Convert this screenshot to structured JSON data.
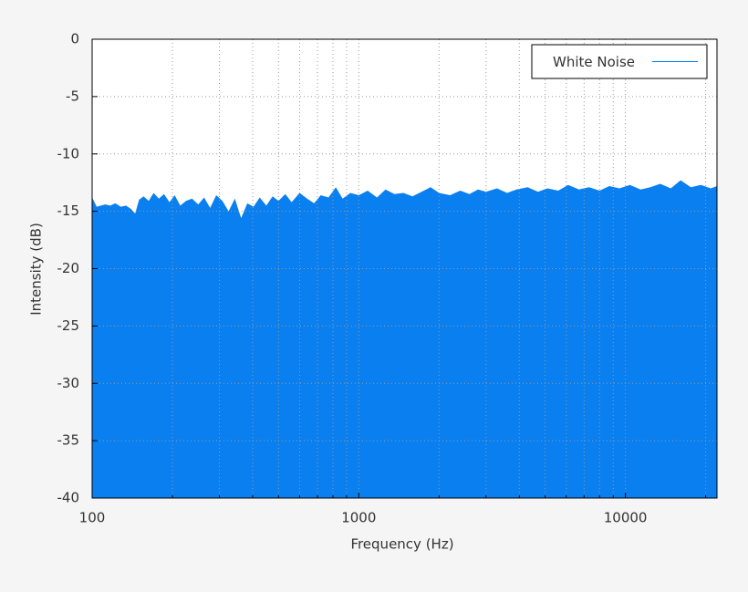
{
  "chart_data": {
    "type": "area",
    "xlabel": "Frequency (Hz)",
    "ylabel": "Intensity (dB)",
    "log_x": true,
    "grid": true,
    "legend": "upper right",
    "xlim": [
      100,
      22050
    ],
    "xticks": [
      100,
      1000,
      10000
    ],
    "x_minor_ticks": [
      200,
      300,
      400,
      500,
      600,
      700,
      800,
      900,
      2000,
      3000,
      4000,
      5000,
      6000,
      7000,
      8000,
      9000,
      20000
    ],
    "ylim": [
      -40,
      0
    ],
    "yticks": [
      0,
      -5,
      -10,
      -15,
      -20,
      -25,
      -30,
      -35,
      -40
    ],
    "x": [
      100,
      104,
      108,
      112,
      117,
      122,
      128,
      134,
      140,
      145,
      150,
      156,
      163,
      170,
      178,
      186,
      195,
      204,
      214,
      225,
      237,
      250,
      263,
      277,
      292,
      308,
      325,
      343,
      362,
      382,
      403,
      425,
      450,
      475,
      500,
      530,
      560,
      600,
      640,
      680,
      720,
      770,
      820,
      870,
      930,
      1000,
      1080,
      1170,
      1260,
      1360,
      1470,
      1590,
      1720,
      1860,
      2000,
      2200,
      2400,
      2600,
      2800,
      3000,
      3300,
      3600,
      3900,
      4300,
      4700,
      5100,
      5600,
      6100,
      6700,
      7300,
      8000,
      8700,
      9500,
      10400,
      11400,
      12400,
      13500,
      14800,
      16100,
      17600,
      19200,
      20900,
      22050
    ],
    "series": [
      {
        "name": "White Noise",
        "color": "#0a7ff0",
        "values": [
          -13.8,
          -14.6,
          -14.5,
          -14.4,
          -14.5,
          -14.3,
          -14.6,
          -14.5,
          -14.8,
          -15.2,
          -14.0,
          -13.7,
          -14.1,
          -13.4,
          -13.9,
          -13.5,
          -14.2,
          -13.6,
          -14.5,
          -14.1,
          -13.9,
          -14.4,
          -13.8,
          -14.7,
          -13.6,
          -14.1,
          -15.0,
          -13.9,
          -15.6,
          -14.3,
          -14.6,
          -13.8,
          -14.5,
          -13.7,
          -14.1,
          -13.5,
          -14.2,
          -13.4,
          -13.9,
          -14.3,
          -13.6,
          -13.8,
          -12.9,
          -13.9,
          -13.4,
          -13.6,
          -13.2,
          -13.8,
          -13.1,
          -13.5,
          -13.4,
          -13.7,
          -13.3,
          -12.9,
          -13.4,
          -13.6,
          -13.2,
          -13.5,
          -13.1,
          -13.3,
          -13.0,
          -13.4,
          -13.1,
          -12.9,
          -13.3,
          -13.0,
          -13.2,
          -12.7,
          -13.1,
          -12.9,
          -13.2,
          -12.8,
          -13.0,
          -12.7,
          -13.1,
          -12.9,
          -12.6,
          -13.0,
          -12.3,
          -12.9,
          -12.7,
          -13.0,
          -12.8
        ]
      }
    ]
  }
}
